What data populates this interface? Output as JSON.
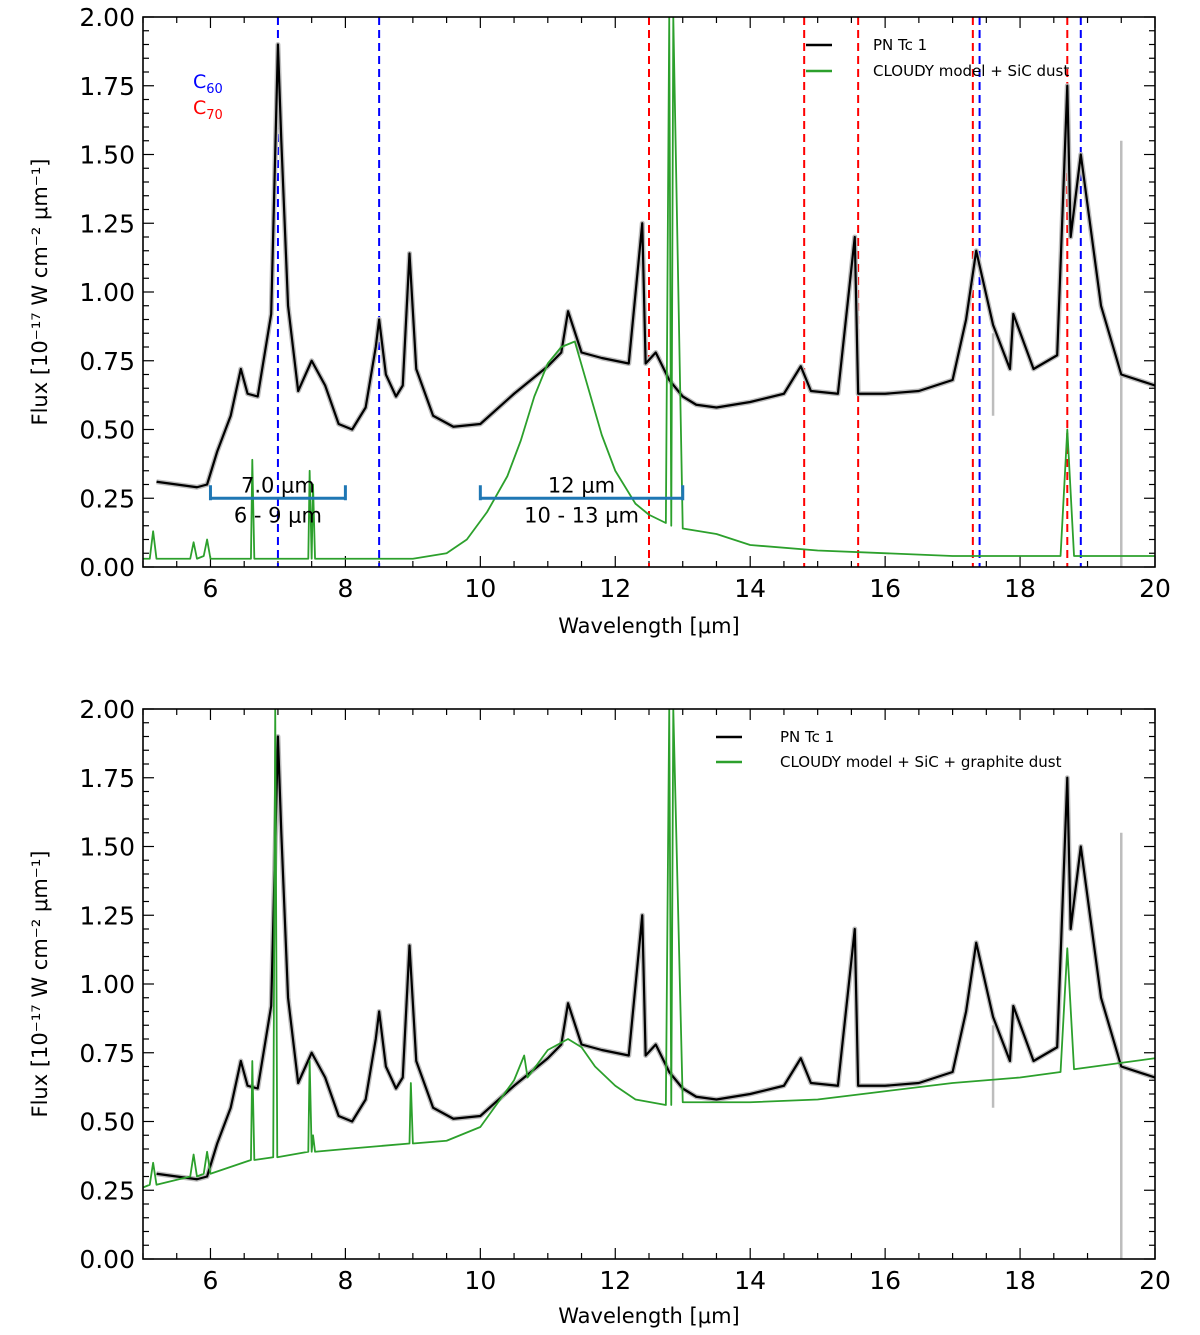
{
  "colors": {
    "observed": "#000000",
    "observed_error": "#bdbdbd",
    "model": "#2ca02c",
    "c60": "#0000ff",
    "c70": "#ff0000",
    "bracket": "#1f77b4"
  },
  "chart_data": [
    {
      "type": "line",
      "xlabel": "Wavelength [μm]",
      "ylabel": "Flux [10⁻¹⁷ W cm⁻² μm⁻¹]",
      "xlim": [
        5,
        20
      ],
      "ylim": [
        0,
        2.0
      ],
      "x_ticks": [
        "6",
        "8",
        "10",
        "12",
        "14",
        "16",
        "18",
        "20"
      ],
      "y_ticks": [
        "0.00",
        "0.25",
        "0.50",
        "0.75",
        "1.00",
        "1.25",
        "1.50",
        "1.75",
        "2.00"
      ],
      "legend_position": "top-right",
      "series": [
        {
          "name": "PN Tc 1",
          "color": "#000000",
          "x": [
            5.2,
            5.5,
            5.8,
            5.95,
            6.1,
            6.3,
            6.45,
            6.55,
            6.7,
            6.9,
            7.0,
            7.05,
            7.15,
            7.3,
            7.5,
            7.7,
            7.9,
            8.1,
            8.3,
            8.45,
            8.5,
            8.6,
            8.75,
            8.85,
            8.95,
            9.05,
            9.3,
            9.6,
            10.0,
            10.5,
            11.0,
            11.2,
            11.3,
            11.5,
            11.8,
            12.2,
            12.4,
            12.45,
            12.6,
            12.8,
            13.0,
            13.2,
            13.5,
            14.0,
            14.5,
            14.75,
            14.9,
            15.3,
            15.55,
            15.6,
            16.0,
            16.5,
            17.0,
            17.2,
            17.35,
            17.6,
            17.85,
            17.9,
            18.2,
            18.55,
            18.7,
            18.75,
            18.9,
            19.2,
            19.5,
            20.0
          ],
          "values": [
            0.31,
            0.3,
            0.29,
            0.3,
            0.42,
            0.55,
            0.72,
            0.63,
            0.62,
            0.92,
            1.9,
            1.55,
            0.95,
            0.64,
            0.75,
            0.66,
            0.52,
            0.5,
            0.58,
            0.8,
            0.9,
            0.7,
            0.62,
            0.66,
            1.14,
            0.72,
            0.55,
            0.51,
            0.52,
            0.63,
            0.73,
            0.78,
            0.93,
            0.78,
            0.76,
            0.74,
            1.25,
            0.74,
            0.78,
            0.68,
            0.62,
            0.59,
            0.58,
            0.6,
            0.63,
            0.73,
            0.64,
            0.63,
            1.2,
            0.63,
            0.63,
            0.64,
            0.68,
            0.9,
            1.15,
            0.88,
            0.72,
            0.92,
            0.72,
            0.77,
            1.75,
            1.2,
            1.5,
            0.95,
            0.7,
            0.66
          ]
        },
        {
          "name": "CLOUDY model + SiC dust",
          "color": "#2ca02c",
          "x": [
            5.0,
            5.1,
            5.15,
            5.2,
            5.5,
            5.7,
            5.75,
            5.8,
            5.9,
            5.95,
            6.0,
            6.6,
            6.62,
            6.65,
            7.0,
            7.45,
            7.47,
            7.5,
            7.52,
            7.55,
            8.0,
            9.0,
            9.5,
            9.8,
            10.1,
            10.4,
            10.6,
            10.8,
            11.0,
            11.2,
            11.4,
            11.6,
            11.8,
            12.0,
            12.3,
            12.5,
            12.75,
            12.8,
            12.83,
            12.86,
            13.0,
            13.5,
            14.0,
            15.0,
            17.0,
            18.6,
            18.7,
            18.8,
            20.0
          ],
          "values": [
            0.03,
            0.03,
            0.13,
            0.03,
            0.03,
            0.03,
            0.09,
            0.03,
            0.04,
            0.1,
            0.03,
            0.03,
            0.39,
            0.03,
            0.03,
            0.03,
            0.35,
            0.03,
            0.3,
            0.03,
            0.03,
            0.03,
            0.05,
            0.1,
            0.2,
            0.33,
            0.46,
            0.62,
            0.74,
            0.8,
            0.82,
            0.65,
            0.48,
            0.35,
            0.23,
            0.19,
            0.16,
            2.0,
            0.15,
            2.0,
            0.14,
            0.12,
            0.08,
            0.06,
            0.04,
            0.04,
            0.5,
            0.04,
            0.04
          ]
        }
      ],
      "annotations": {
        "species": [
          "C60",
          "C70"
        ],
        "c60_lines": [
          7.0,
          8.5,
          17.4,
          18.9
        ],
        "c70_lines": [
          12.5,
          14.8,
          15.6,
          17.3,
          18.7
        ],
        "brackets": [
          {
            "x0": 6,
            "x1": 8,
            "y": 0.25,
            "upper_label": "7.0 μm",
            "lower_label": "6 - 9 μm"
          },
          {
            "x0": 10,
            "x1": 13,
            "y": 0.25,
            "upper_label": "12 μm",
            "lower_label": "10 - 13 μm"
          }
        ]
      }
    },
    {
      "type": "line",
      "xlabel": "Wavelength [μm]",
      "ylabel": "Flux [10⁻¹⁷ W cm⁻² μm⁻¹]",
      "xlim": [
        5,
        20
      ],
      "ylim": [
        0,
        2.0
      ],
      "x_ticks": [
        "6",
        "8",
        "10",
        "12",
        "14",
        "16",
        "18",
        "20"
      ],
      "y_ticks": [
        "0.00",
        "0.25",
        "0.50",
        "0.75",
        "1.00",
        "1.25",
        "1.50",
        "1.75",
        "2.00"
      ],
      "legend_position": "top-right",
      "series": [
        {
          "name": "PN Tc 1",
          "color": "#000000",
          "x": [
            5.2,
            5.5,
            5.8,
            5.95,
            6.1,
            6.3,
            6.45,
            6.55,
            6.7,
            6.9,
            7.0,
            7.05,
            7.15,
            7.3,
            7.5,
            7.7,
            7.9,
            8.1,
            8.3,
            8.45,
            8.5,
            8.6,
            8.75,
            8.85,
            8.95,
            9.05,
            9.3,
            9.6,
            10.0,
            10.5,
            11.0,
            11.2,
            11.3,
            11.5,
            11.8,
            12.2,
            12.4,
            12.45,
            12.6,
            12.8,
            13.0,
            13.2,
            13.5,
            14.0,
            14.5,
            14.75,
            14.9,
            15.3,
            15.55,
            15.6,
            16.0,
            16.5,
            17.0,
            17.2,
            17.35,
            17.6,
            17.85,
            17.9,
            18.2,
            18.55,
            18.7,
            18.75,
            18.9,
            19.2,
            19.5,
            20.0
          ],
          "values": [
            0.31,
            0.3,
            0.29,
            0.3,
            0.42,
            0.55,
            0.72,
            0.63,
            0.62,
            0.92,
            1.9,
            1.55,
            0.95,
            0.64,
            0.75,
            0.66,
            0.52,
            0.5,
            0.58,
            0.8,
            0.9,
            0.7,
            0.62,
            0.66,
            1.14,
            0.72,
            0.55,
            0.51,
            0.52,
            0.63,
            0.73,
            0.78,
            0.93,
            0.78,
            0.76,
            0.74,
            1.25,
            0.74,
            0.78,
            0.68,
            0.62,
            0.59,
            0.58,
            0.6,
            0.63,
            0.73,
            0.64,
            0.63,
            1.2,
            0.63,
            0.63,
            0.64,
            0.68,
            0.9,
            1.15,
            0.88,
            0.72,
            0.92,
            0.72,
            0.77,
            1.75,
            1.2,
            1.5,
            0.95,
            0.7,
            0.66
          ]
        },
        {
          "name": "CLOUDY model + SiC + graphite dust",
          "color": "#2ca02c",
          "x": [
            5.0,
            5.1,
            5.15,
            5.2,
            5.7,
            5.75,
            5.8,
            5.9,
            5.95,
            6.0,
            6.6,
            6.62,
            6.65,
            6.93,
            6.96,
            6.99,
            7.45,
            7.47,
            7.5,
            7.52,
            7.55,
            8.0,
            8.95,
            8.97,
            9.0,
            9.5,
            10.0,
            10.5,
            10.65,
            10.7,
            11.0,
            11.3,
            11.5,
            11.7,
            12.0,
            12.3,
            12.75,
            12.8,
            12.83,
            12.86,
            13.0,
            14.0,
            15.0,
            16.0,
            17.0,
            18.0,
            18.6,
            18.7,
            18.8,
            20.0
          ],
          "values": [
            0.26,
            0.27,
            0.35,
            0.27,
            0.3,
            0.38,
            0.3,
            0.31,
            0.39,
            0.31,
            0.36,
            0.72,
            0.36,
            0.37,
            2.0,
            0.37,
            0.39,
            0.72,
            0.39,
            0.45,
            0.39,
            0.4,
            0.42,
            0.64,
            0.42,
            0.43,
            0.48,
            0.65,
            0.74,
            0.66,
            0.76,
            0.8,
            0.77,
            0.7,
            0.63,
            0.58,
            0.56,
            2.0,
            0.56,
            2.0,
            0.57,
            0.57,
            0.58,
            0.61,
            0.64,
            0.66,
            0.68,
            1.13,
            0.69,
            0.73
          ]
        }
      ]
    }
  ]
}
